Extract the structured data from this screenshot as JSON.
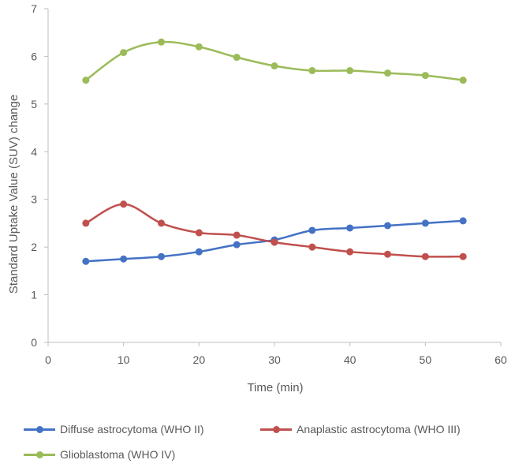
{
  "chart_data": {
    "type": "line",
    "title": "",
    "xlabel": "Time (min)",
    "ylabel": "Standard Uptake Value (SUV) change",
    "xlim": [
      0,
      60
    ],
    "ylim": [
      0,
      7
    ],
    "xticks": [
      0,
      10,
      20,
      30,
      40,
      50,
      60
    ],
    "yticks": [
      0,
      1,
      2,
      3,
      4,
      5,
      6,
      7
    ],
    "grid": false,
    "legend_position": "bottom",
    "x": [
      5,
      10,
      15,
      20,
      25,
      30,
      35,
      40,
      45,
      50,
      55
    ],
    "series": [
      {
        "name": "Diffuse astrocytoma (WHO II)",
        "color": "#4472C4",
        "values": [
          1.7,
          1.75,
          1.8,
          1.9,
          2.05,
          2.15,
          2.35,
          2.4,
          2.45,
          2.5,
          2.55
        ]
      },
      {
        "name": "Anaplastic astrocytoma (WHO III)",
        "color": "#C0504D",
        "values": [
          2.5,
          2.9,
          2.5,
          2.3,
          2.25,
          2.1,
          2.0,
          1.9,
          1.85,
          1.8,
          1.8
        ]
      },
      {
        "name": "Glioblastoma (WHO IV)",
        "color": "#9BBB59",
        "values": [
          5.5,
          6.08,
          6.3,
          6.2,
          5.98,
          5.8,
          5.7,
          5.7,
          5.65,
          5.6,
          5.5
        ]
      }
    ]
  }
}
